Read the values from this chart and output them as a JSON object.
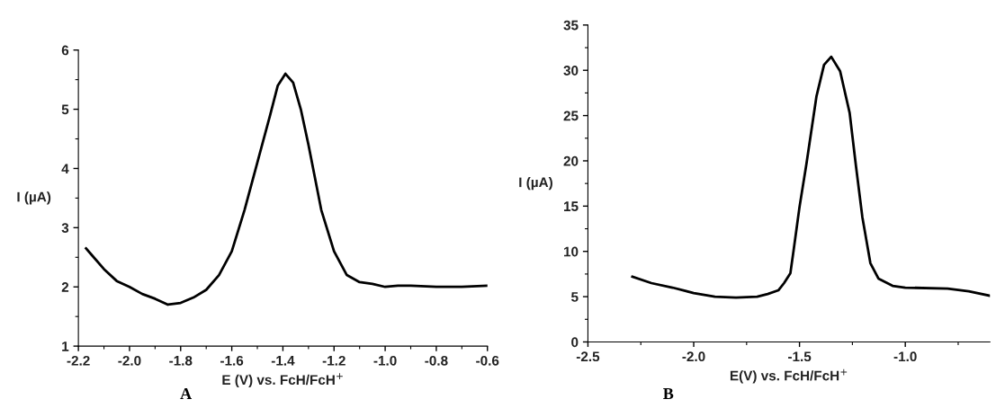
{
  "chart_data": [
    {
      "type": "line",
      "xlabel": "E (V) vs. FcH/FcH$^{+}$",
      "ylabel": "I (µA)",
      "annotations": [
        "A"
      ],
      "xlim": [
        -2.2,
        -0.6
      ],
      "ylim": [
        1,
        6
      ],
      "xticks": [
        {
          "value": -2.2,
          "label": "-2.2"
        },
        {
          "value": -2.0,
          "label": "-2.0"
        },
        {
          "value": -1.8,
          "label": "-1.8"
        },
        {
          "value": -1.6,
          "label": "-1.6"
        },
        {
          "value": -1.4,
          "label": "-1.4"
        },
        {
          "value": -1.2,
          "label": "-1.2"
        },
        {
          "value": -1.0,
          "label": "-1.0"
        },
        {
          "value": -0.8,
          "label": "-0.8"
        },
        {
          "value": -0.6,
          "label": "-0.6"
        }
      ],
      "yticks": [
        1,
        2,
        3,
        4,
        5,
        6
      ],
      "series": [
        {
          "color": "#000000",
          "x": [
            -2.17,
            -2.15,
            -2.1,
            -2.05,
            -2.0,
            -1.95,
            -1.9,
            -1.85,
            -1.8,
            -1.75,
            -1.7,
            -1.65,
            -1.6,
            -1.55,
            -1.5,
            -1.45,
            -1.42,
            -1.39,
            -1.36,
            -1.33,
            -1.3,
            -1.25,
            -1.2,
            -1.15,
            -1.1,
            -1.05,
            -1.0,
            -0.95,
            -0.9,
            -0.8,
            -0.7,
            -0.6
          ],
          "values": [
            2.65,
            2.55,
            2.3,
            2.1,
            2.0,
            1.88,
            1.8,
            1.7,
            1.73,
            1.82,
            1.95,
            2.2,
            2.6,
            3.3,
            4.1,
            4.9,
            5.4,
            5.6,
            5.45,
            5.0,
            4.4,
            3.3,
            2.6,
            2.2,
            2.08,
            2.05,
            2.0,
            2.02,
            2.02,
            2.0,
            2.0,
            2.02
          ]
        }
      ]
    },
    {
      "type": "line",
      "xlabel": "E(V) vs. FcH/FcH$^{+}$",
      "ylabel": "I (µA)",
      "annotations": [
        "B"
      ],
      "xlim": [
        -2.5,
        -0.6
      ],
      "ylim": [
        0,
        35
      ],
      "xticks": [
        {
          "value": -2.5,
          "label": "-2.5"
        },
        {
          "value": -2.0,
          "label": "-2.0"
        },
        {
          "value": -1.5,
          "label": "-1.5"
        },
        {
          "value": -1.0,
          "label": "-1.0"
        }
      ],
      "yticks": [
        0,
        5,
        10,
        15,
        20,
        25,
        30,
        35
      ],
      "series": [
        {
          "color": "#000000",
          "x": [
            -2.29,
            -2.2,
            -2.1,
            -2.0,
            -1.9,
            -1.8,
            -1.7,
            -1.65,
            -1.6,
            -1.573,
            -1.543,
            -1.528,
            -1.5,
            -1.467,
            -1.42,
            -1.384,
            -1.35,
            -1.308,
            -1.263,
            -1.233,
            -1.203,
            -1.165,
            -1.127,
            -1.06,
            -1.0,
            -0.8,
            -0.7,
            -0.6
          ],
          "values": [
            7.2,
            6.5,
            6.0,
            5.4,
            5.0,
            4.9,
            5.0,
            5.3,
            5.7,
            6.5,
            7.6,
            10.1,
            14.9,
            19.7,
            27.1,
            30.6,
            31.5,
            29.9,
            25.3,
            19.4,
            13.8,
            8.7,
            7.0,
            6.2,
            6.0,
            5.9,
            5.6,
            5.1
          ]
        }
      ]
    }
  ]
}
